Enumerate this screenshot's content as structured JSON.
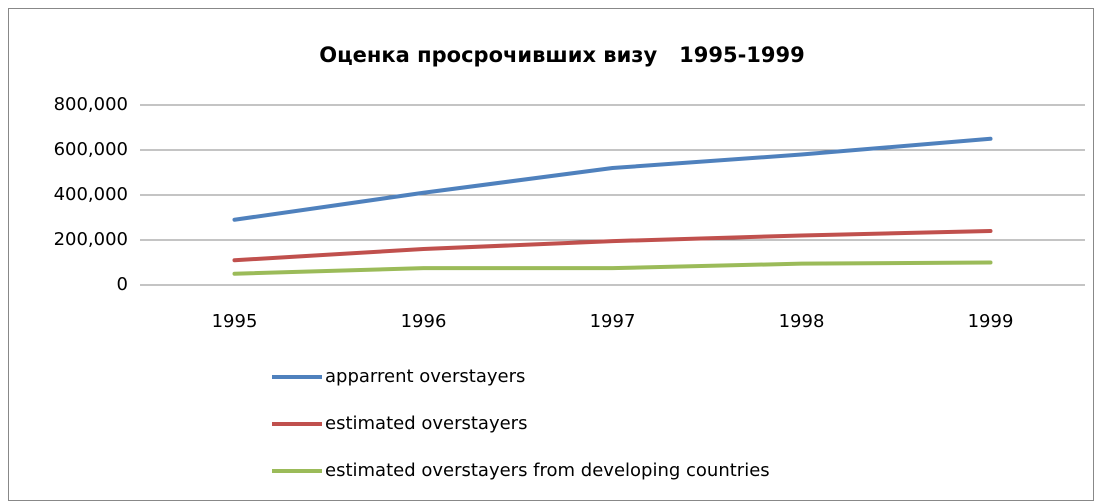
{
  "chart_data": {
    "type": "line",
    "title": "Оценка просрочивших визу   1995-1999",
    "categories": [
      "1995",
      "1996",
      "1997",
      "1998",
      "1999"
    ],
    "series": [
      {
        "name": "apparrent overstayers",
        "color": "#4f81bd",
        "values": [
          290000,
          410000,
          520000,
          580000,
          650000
        ]
      },
      {
        "name": "estimated overstayers",
        "color": "#c0504d",
        "values": [
          110000,
          160000,
          195000,
          220000,
          240000
        ]
      },
      {
        "name": "estimated overstayers from developing countries",
        "color": "#9bbb59",
        "values": [
          50000,
          75000,
          75000,
          95000,
          100000
        ]
      }
    ],
    "ylim": [
      0,
      800000
    ],
    "yticks": [
      0,
      {
        "value": 200000,
        "label": "200,000"
      },
      {
        "value": 400000,
        "label": "400,000"
      },
      {
        "value": 600000,
        "label": "600,000"
      },
      {
        "value": 800000,
        "label": "800,000"
      }
    ],
    "grid": true,
    "legend": "bottom"
  }
}
